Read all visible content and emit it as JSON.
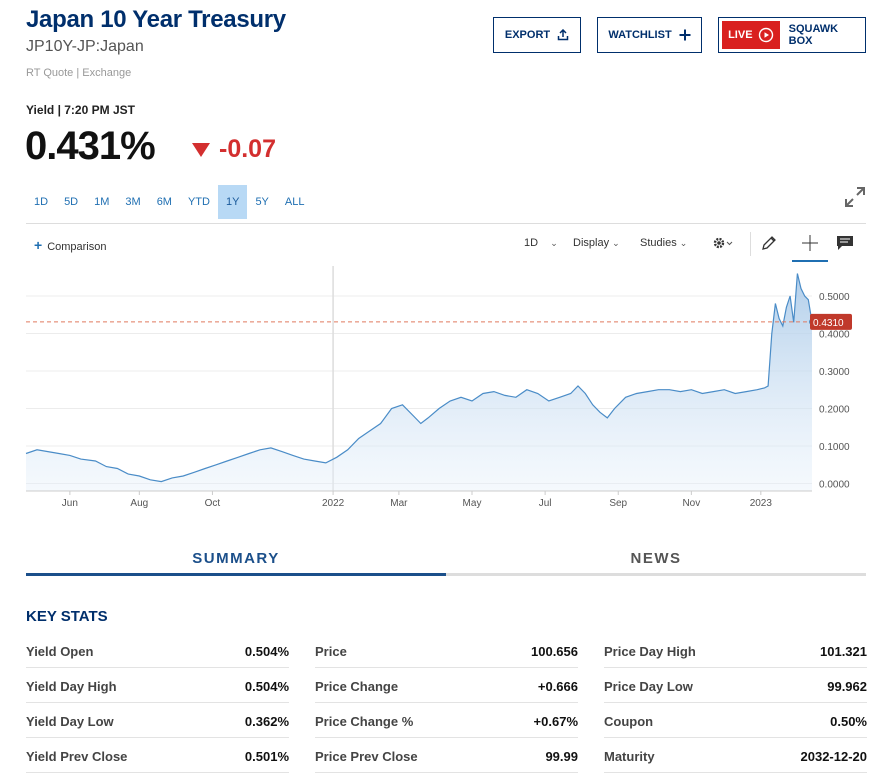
{
  "header": {
    "title": "Japan 10 Year Treasury",
    "symbol": "JP10Y-JP:Japan",
    "quote_type": "RT Quote | Exchange",
    "export_label": "EXPORT",
    "watchlist_label": "WATCHLIST",
    "live_label": "LIVE",
    "squawk_label": "SQUAWK BOX"
  },
  "quote": {
    "yield_line": "Yield | 7:20 PM JST",
    "last": "0.431%",
    "change": "-0.07",
    "change_color": "#d32f2f"
  },
  "ranges": [
    "1D",
    "5D",
    "1M",
    "3M",
    "6M",
    "YTD",
    "1Y",
    "5Y",
    "ALL"
  ],
  "active_range": "1Y",
  "toolbar": {
    "comparison": "Comparison",
    "interval": "1D",
    "display": "Display",
    "studies": "Studies"
  },
  "chart_data": {
    "type": "area",
    "x_labels": [
      "Jun",
      "Aug",
      "Oct",
      "2022",
      "Mar",
      "May",
      "Jul",
      "Sep",
      "Nov",
      "2023"
    ],
    "y_ticks": [
      "0.5000",
      "0.4000",
      "0.3000",
      "0.2000",
      "0.1000",
      "0.0000"
    ],
    "ylim": [
      -0.02,
      0.58
    ],
    "current_label": "0.4310",
    "current_value": 0.431,
    "line_color": "#4a8cc7",
    "points": [
      [
        0,
        0.08
      ],
      [
        3,
        0.09
      ],
      [
        6,
        0.085
      ],
      [
        9,
        0.08
      ],
      [
        12,
        0.075
      ],
      [
        15,
        0.065
      ],
      [
        19,
        0.06
      ],
      [
        22,
        0.045
      ],
      [
        25,
        0.04
      ],
      [
        28,
        0.025
      ],
      [
        31,
        0.02
      ],
      [
        34,
        0.01
      ],
      [
        37,
        0.005
      ],
      [
        40,
        0.015
      ],
      [
        43,
        0.02
      ],
      [
        46,
        0.03
      ],
      [
        49,
        0.04
      ],
      [
        52,
        0.05
      ],
      [
        55,
        0.06
      ],
      [
        58,
        0.07
      ],
      [
        61,
        0.08
      ],
      [
        64,
        0.09
      ],
      [
        67,
        0.095
      ],
      [
        70,
        0.085
      ],
      [
        73,
        0.075
      ],
      [
        76,
        0.065
      ],
      [
        79,
        0.06
      ],
      [
        82,
        0.055
      ],
      [
        85,
        0.07
      ],
      [
        88,
        0.09
      ],
      [
        91,
        0.12
      ],
      [
        94,
        0.14
      ],
      [
        97,
        0.16
      ],
      [
        100,
        0.2
      ],
      [
        103,
        0.21
      ],
      [
        106,
        0.18
      ],
      [
        108,
        0.16
      ],
      [
        110,
        0.175
      ],
      [
        113,
        0.2
      ],
      [
        116,
        0.22
      ],
      [
        119,
        0.23
      ],
      [
        122,
        0.22
      ],
      [
        125,
        0.24
      ],
      [
        128,
        0.245
      ],
      [
        131,
        0.235
      ],
      [
        134,
        0.23
      ],
      [
        137,
        0.25
      ],
      [
        140,
        0.24
      ],
      [
        143,
        0.22
      ],
      [
        146,
        0.23
      ],
      [
        149,
        0.24
      ],
      [
        151,
        0.26
      ],
      [
        153,
        0.24
      ],
      [
        155,
        0.21
      ],
      [
        157,
        0.19
      ],
      [
        159,
        0.175
      ],
      [
        161,
        0.2
      ],
      [
        164,
        0.23
      ],
      [
        167,
        0.24
      ],
      [
        170,
        0.245
      ],
      [
        173,
        0.25
      ],
      [
        176,
        0.25
      ],
      [
        179,
        0.245
      ],
      [
        182,
        0.25
      ],
      [
        185,
        0.24
      ],
      [
        188,
        0.245
      ],
      [
        191,
        0.25
      ],
      [
        194,
        0.24
      ],
      [
        197,
        0.245
      ],
      [
        200,
        0.25
      ],
      [
        202,
        0.255
      ],
      [
        203,
        0.26
      ],
      [
        204,
        0.4
      ],
      [
        205,
        0.48
      ],
      [
        206,
        0.44
      ],
      [
        207,
        0.42
      ],
      [
        208,
        0.47
      ],
      [
        209,
        0.5
      ],
      [
        210,
        0.43
      ],
      [
        211,
        0.56
      ],
      [
        212,
        0.52
      ],
      [
        213,
        0.5
      ],
      [
        214,
        0.49
      ],
      [
        215,
        0.431
      ]
    ],
    "x_min": 0,
    "x_max": 215,
    "label_x": [
      12,
      31,
      51,
      84,
      102,
      122,
      142,
      162,
      182,
      201
    ]
  },
  "tabs": {
    "summary": "SUMMARY",
    "news": "NEWS"
  },
  "key_stats": {
    "title": "KEY STATS",
    "columns": [
      [
        {
          "label": "Yield Open",
          "value": "0.504%"
        },
        {
          "label": "Yield Day High",
          "value": "0.504%"
        },
        {
          "label": "Yield Day Low",
          "value": "0.362%"
        },
        {
          "label": "Yield Prev Close",
          "value": "0.501%"
        }
      ],
      [
        {
          "label": "Price",
          "value": "100.656"
        },
        {
          "label": "Price Change",
          "value": "+0.666"
        },
        {
          "label": "Price Change %",
          "value": "+0.67%"
        },
        {
          "label": "Price Prev Close",
          "value": "99.99"
        }
      ],
      [
        {
          "label": "Price Day High",
          "value": "101.321"
        },
        {
          "label": "Price Day Low",
          "value": "99.962"
        },
        {
          "label": "Coupon",
          "value": "0.50%"
        },
        {
          "label": "Maturity",
          "value": "2032-12-20"
        }
      ]
    ]
  }
}
